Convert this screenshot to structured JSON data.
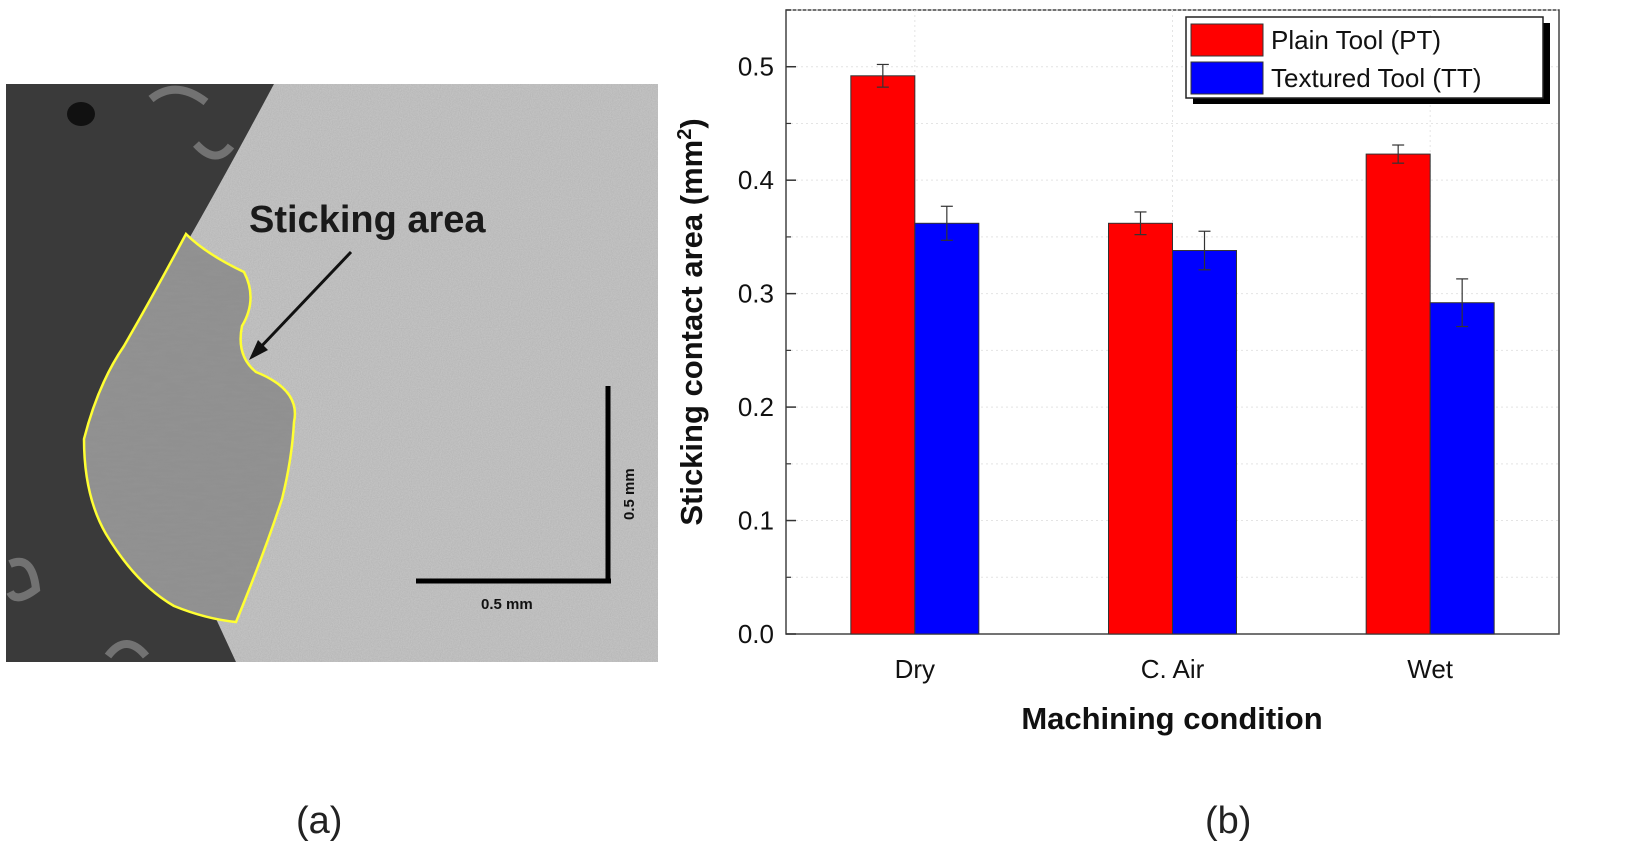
{
  "panel_a": {
    "caption": "(a)",
    "annotation": "Sticking area",
    "scale_bar_horizontal": "0.5 mm",
    "scale_bar_vertical": "0.5 mm",
    "colors": {
      "dark_region": "#3a3a3a",
      "tool_surface": "#c9c9c9",
      "sticking_outline": "#ffff33",
      "arrow": "#111111"
    }
  },
  "panel_b": {
    "caption": "(b)"
  },
  "chart_data": {
    "type": "bar",
    "categories": [
      "Dry",
      "C. Air",
      "Wet"
    ],
    "series": [
      {
        "name": "Plain Tool (PT)",
        "color": "#ff0000",
        "values": [
          0.492,
          0.362,
          0.423
        ],
        "errors": [
          0.01,
          0.01,
          0.008
        ]
      },
      {
        "name": "Textured Tool (TT)",
        "color": "#0000ff",
        "values": [
          0.362,
          0.338,
          0.292
        ],
        "errors": [
          0.015,
          0.017,
          0.021
        ]
      }
    ],
    "xlabel": "Machining condition",
    "ylabel_main": "Sticking contact area (mm",
    "ylabel_sup": "2",
    "ylabel_end": ")",
    "ylim": [
      0,
      0.55
    ],
    "yticks": [
      "0.0",
      "0.1",
      "0.2",
      "0.3",
      "0.4",
      "0.5"
    ],
    "ytick_values": [
      0,
      0.1,
      0.2,
      0.3,
      0.4,
      0.5
    ],
    "grid": true,
    "legend_position": "top-right"
  }
}
